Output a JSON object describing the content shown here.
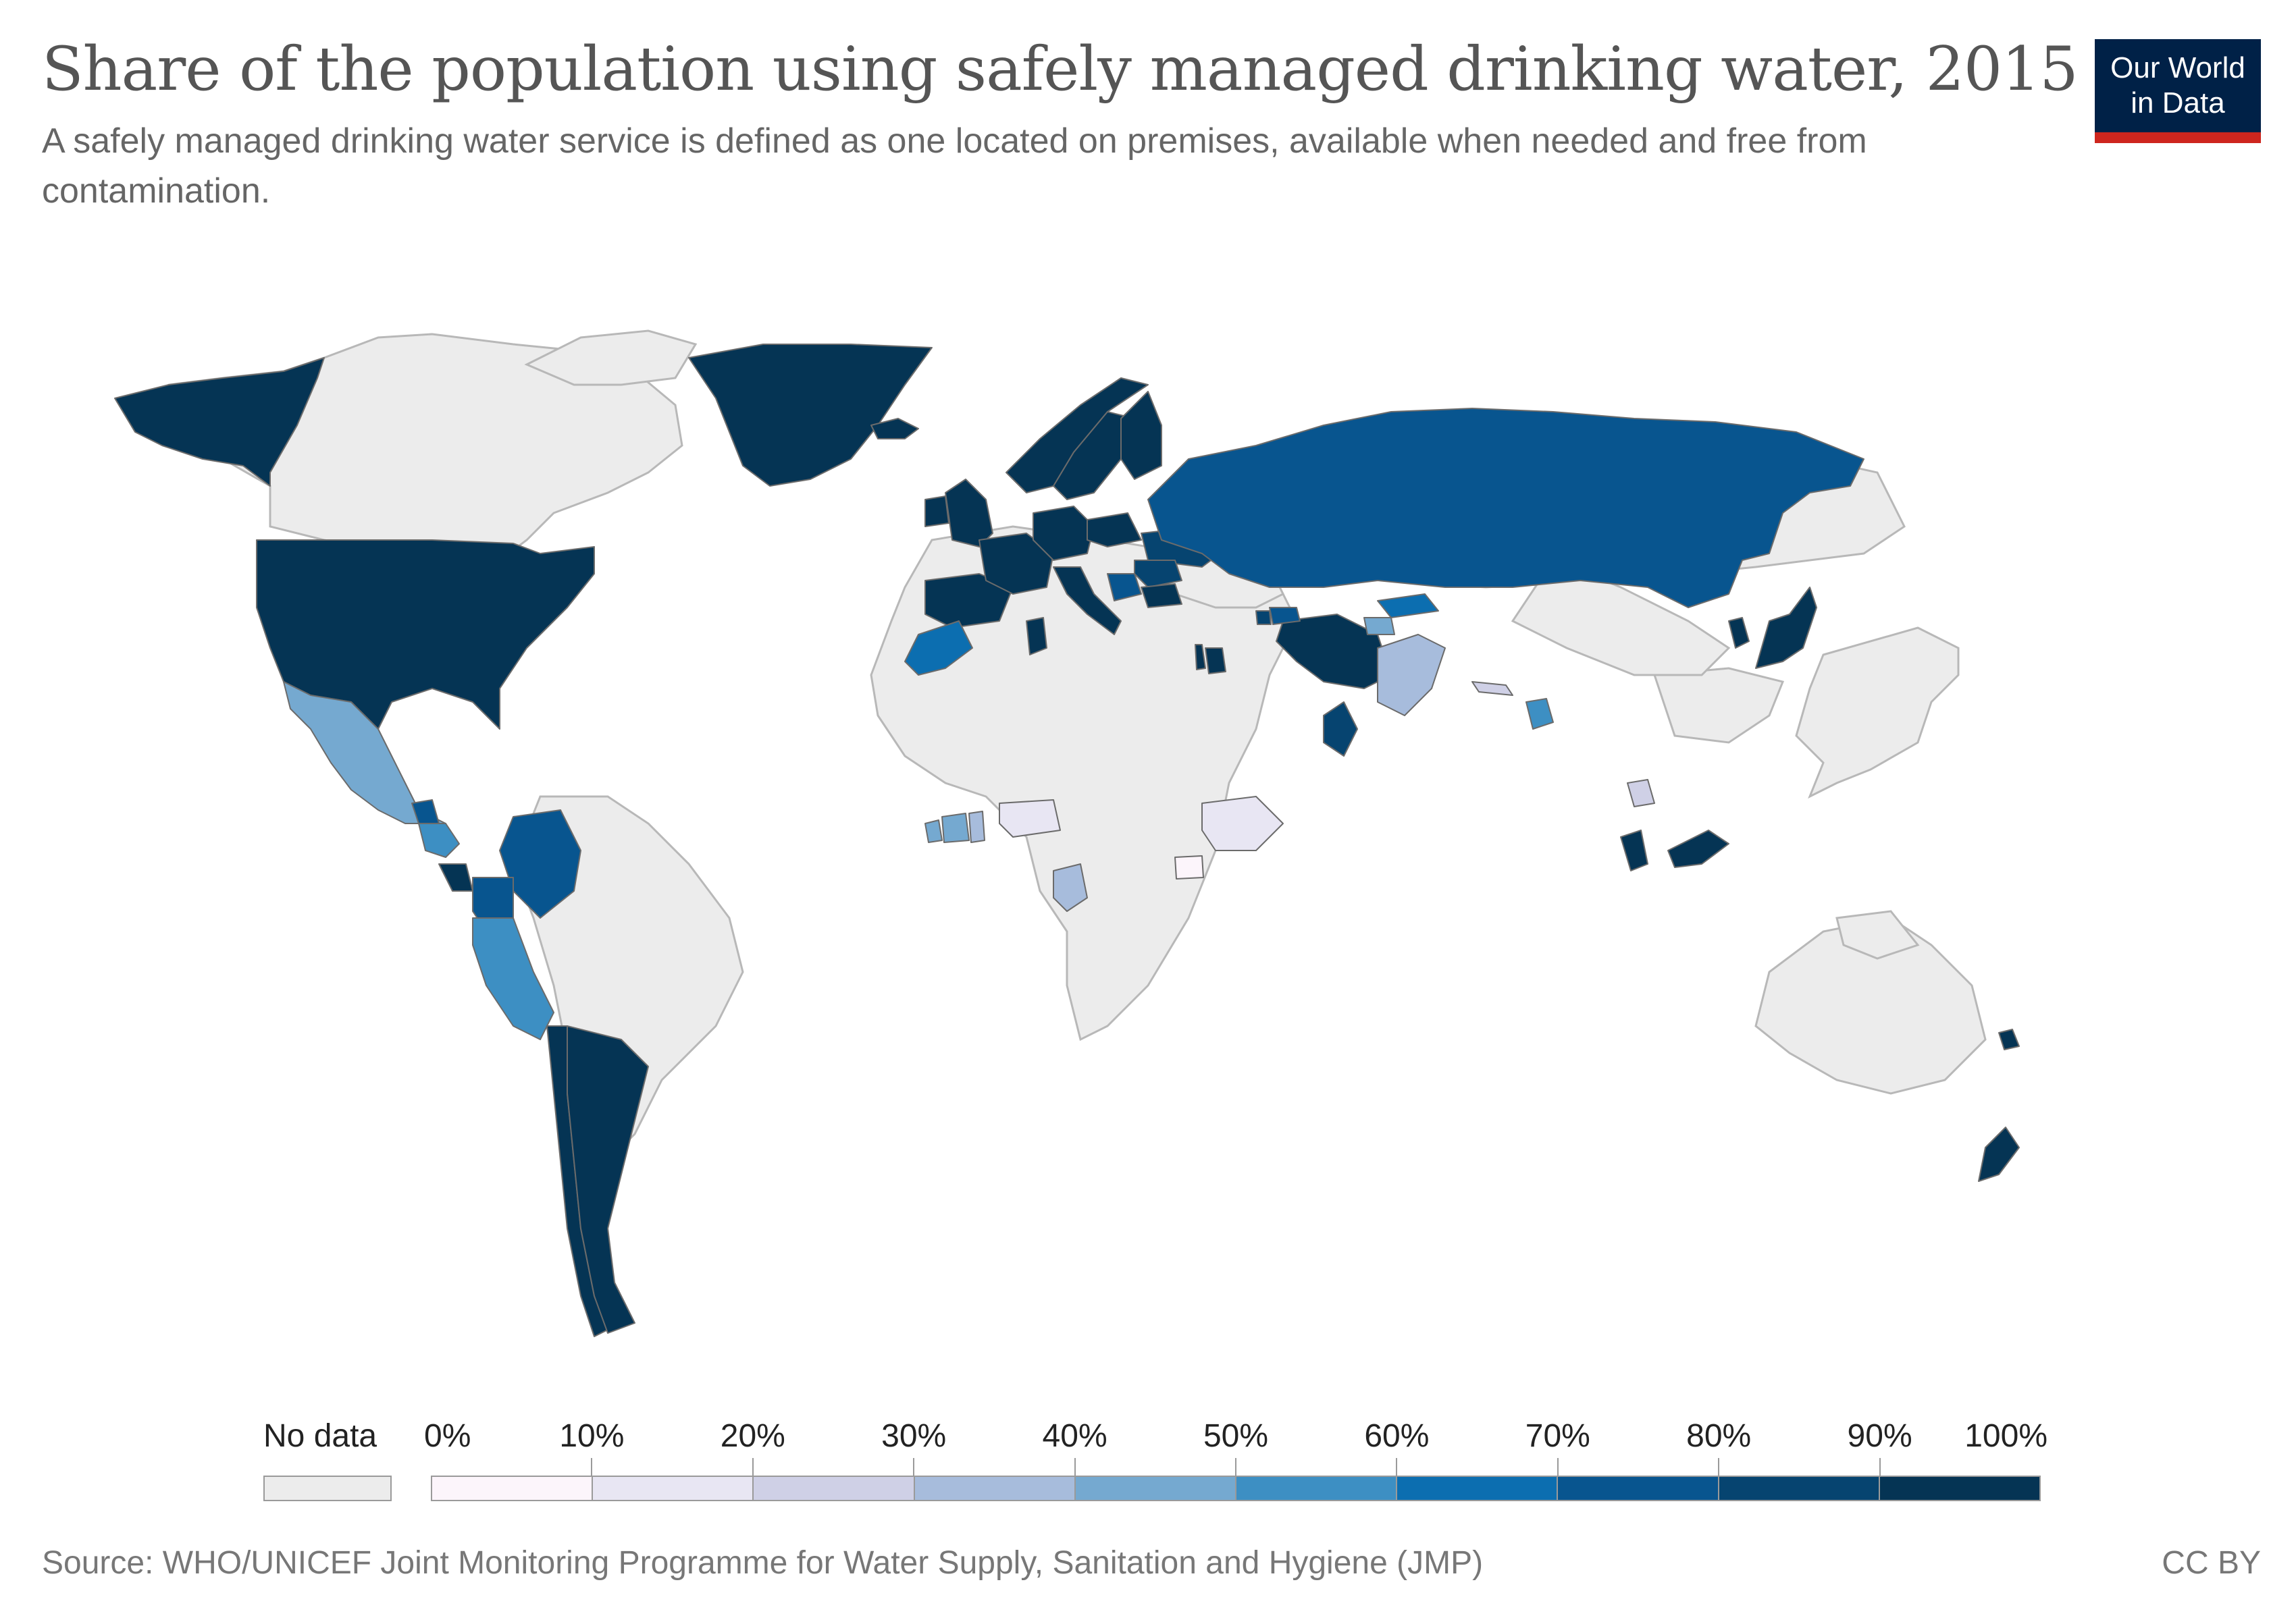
{
  "title": "Share of the population using safely managed drinking water, 2015",
  "subtitle": "A safely managed drinking water service is defined as one located on premises, available when needed and free from contamination.",
  "logo": {
    "line1": "Our World",
    "line2": "in Data"
  },
  "legend": {
    "no_data_label": "No data",
    "no_data_color": "#ececec",
    "bins": [
      {
        "label": "0%",
        "color": "#fcf5fb"
      },
      {
        "label": "10%",
        "color": "#e8e6f3"
      },
      {
        "label": "20%",
        "color": "#cfd0e6"
      },
      {
        "label": "30%",
        "color": "#a7bcdc"
      },
      {
        "label": "40%",
        "color": "#75a9d0"
      },
      {
        "label": "50%",
        "color": "#3d8fc3"
      },
      {
        "label": "60%",
        "color": "#0c6eb0"
      },
      {
        "label": "70%",
        "color": "#08558f"
      },
      {
        "label": "80%",
        "color": "#064470"
      },
      {
        "label": "90%",
        "color": "#053454"
      }
    ],
    "end_label": "100%"
  },
  "source": "Source: WHO/UNICEF Joint Monitoring Programme for Water Supply, Sanitation and Hygiene (JMP)",
  "license": "CC BY",
  "chart_data": {
    "type": "choropleth",
    "year": 2015,
    "unit": "%",
    "color_scale_range": [
      0,
      100
    ],
    "regions": [
      {
        "name": "United States",
        "value": 99
      },
      {
        "name": "Alaska (United States)",
        "value": 99
      },
      {
        "name": "Canada",
        "value": null
      },
      {
        "name": "Greenland",
        "value": 97
      },
      {
        "name": "Mexico",
        "value": 43
      },
      {
        "name": "Guatemala",
        "value": 56
      },
      {
        "name": "Belize",
        "value": 75
      },
      {
        "name": "Costa Rica",
        "value": 92
      },
      {
        "name": "Panama",
        "value": 50
      },
      {
        "name": "Colombia",
        "value": 73
      },
      {
        "name": "Ecuador",
        "value": 74
      },
      {
        "name": "Peru",
        "value": 50
      },
      {
        "name": "Chile",
        "value": 99
      },
      {
        "name": "Argentina",
        "value": 97
      },
      {
        "name": "Brazil",
        "value": null
      },
      {
        "name": "Iceland",
        "value": 100
      },
      {
        "name": "United Kingdom",
        "value": 97
      },
      {
        "name": "Ireland",
        "value": 96
      },
      {
        "name": "Spain",
        "value": 98
      },
      {
        "name": "France",
        "value": 97
      },
      {
        "name": "Germany",
        "value": 99
      },
      {
        "name": "Norway",
        "value": 98
      },
      {
        "name": "Sweden",
        "value": 99
      },
      {
        "name": "Finland",
        "value": 99
      },
      {
        "name": "Italy",
        "value": 95
      },
      {
        "name": "Poland",
        "value": 97
      },
      {
        "name": "Ukraine",
        "value": 89
      },
      {
        "name": "Romania",
        "value": 82
      },
      {
        "name": "Serbia",
        "value": 75
      },
      {
        "name": "Bulgaria",
        "value": 97
      },
      {
        "name": "Russia",
        "value": 76
      },
      {
        "name": "Morocco",
        "value": 68
      },
      {
        "name": "Tunisia",
        "value": 93
      },
      {
        "name": "Israel",
        "value": 99
      },
      {
        "name": "Jordan",
        "value": 93
      },
      {
        "name": "Iran",
        "value": 92
      },
      {
        "name": "Azerbaijan",
        "value": 74
      },
      {
        "name": "Armenia",
        "value": 86
      },
      {
        "name": "Oman",
        "value": 89
      },
      {
        "name": "Kyrgyzstan",
        "value": 63
      },
      {
        "name": "Tajikistan",
        "value": 47
      },
      {
        "name": "Pakistan",
        "value": 36
      },
      {
        "name": "Nepal",
        "value": 27
      },
      {
        "name": "Bangladesh",
        "value": 56
      },
      {
        "name": "Cambodia",
        "value": 24
      },
      {
        "name": "Malaysia",
        "value": 93
      },
      {
        "name": "Japan",
        "value": 98
      },
      {
        "name": "South Korea",
        "value": 98
      },
      {
        "name": "Liberia",
        "value": 46
      },
      {
        "name": "Cote d'Ivoire",
        "value": 46
      },
      {
        "name": "Ghana",
        "value": 35
      },
      {
        "name": "Nigeria",
        "value": 19
      },
      {
        "name": "Ethiopia",
        "value": 11
      },
      {
        "name": "Uganda",
        "value": 7
      },
      {
        "name": "Congo",
        "value": 38
      },
      {
        "name": "Australia",
        "value": null
      },
      {
        "name": "New Zealand",
        "value": 100
      },
      {
        "name": "New Caledonia",
        "value": 95
      }
    ]
  }
}
